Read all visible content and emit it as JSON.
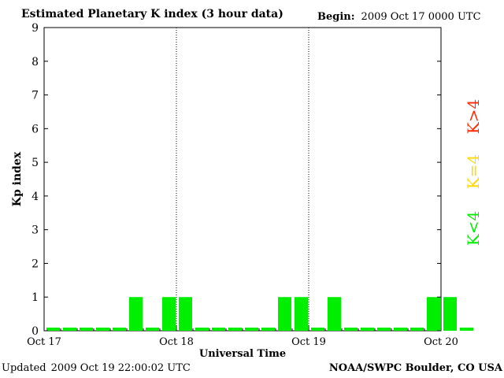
{
  "header": {
    "title": "Estimated Planetary K index (3 hour data)",
    "begin_label": "Begin:",
    "begin_value": "2009 Oct 17 0000 UTC"
  },
  "footer": {
    "updated_label": "Updated",
    "updated_value": "2009 Oct 19 22:00:02 UTC",
    "credit": "NOAA/SWPC Boulder, CO USA"
  },
  "legend": [
    {
      "label": "K>4",
      "color": "#ff2a00"
    },
    {
      "label": "K=4",
      "color": "#ffd800"
    },
    {
      "label": "K<4",
      "color": "#00ee00"
    }
  ],
  "chart_data": {
    "type": "bar",
    "title": "Estimated Planetary K index (3 hour data)",
    "xlabel": "Universal Time",
    "ylabel": "Kp index",
    "ylim": [
      0,
      9
    ],
    "yticks": [
      0,
      1,
      2,
      3,
      4,
      5,
      6,
      7,
      8,
      9
    ],
    "xticks": [
      "Oct 17",
      "Oct 18",
      "Oct 19",
      "Oct 20"
    ],
    "bar_interval_hours": 3,
    "values": [
      0,
      0,
      0,
      0,
      0,
      1,
      0,
      1,
      1,
      0,
      0,
      0,
      0,
      0,
      1,
      1,
      0,
      1,
      0,
      0,
      0,
      0,
      0,
      1,
      1,
      0
    ],
    "bar_color": "#00ee00",
    "grid": false,
    "day_separators": true
  }
}
